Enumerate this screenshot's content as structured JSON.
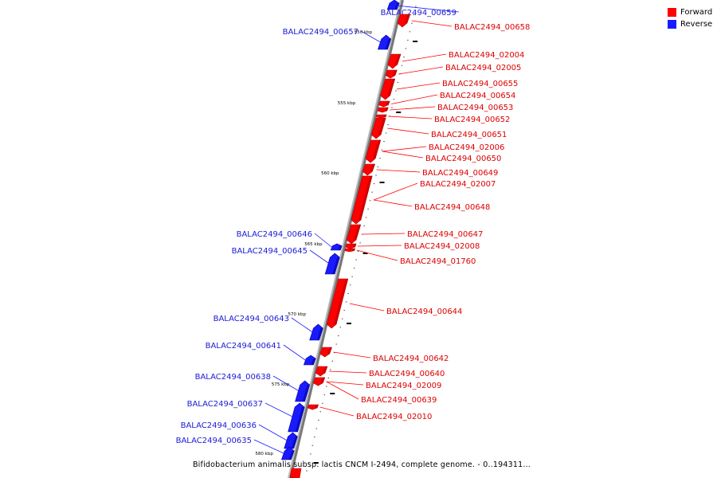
{
  "legend": {
    "forward": {
      "label": "Forward",
      "color": "#ff0000"
    },
    "reverse": {
      "label": "Reverse",
      "color": "#1a1aff"
    }
  },
  "caption": "Bifidobacterium animalis subsp. lactis CNCM I-2494, complete genome. - 0..194311...",
  "ticks": [
    {
      "kbp": 550,
      "label": "550 kbp"
    },
    {
      "kbp": 555,
      "label": "555 kbp"
    },
    {
      "kbp": 560,
      "label": "560 kbp"
    },
    {
      "kbp": 565,
      "label": "565 kbp"
    },
    {
      "kbp": 570,
      "label": "570 kbp"
    },
    {
      "kbp": 575,
      "label": "575 kbp"
    },
    {
      "kbp": 580,
      "label": "580 kbp"
    }
  ],
  "genes": [
    {
      "name": "BALAC2494_00659",
      "strand": "reverse"
    },
    {
      "name": "BALAC2494_00658",
      "strand": "forward"
    },
    {
      "name": "BALAC2494_00657",
      "strand": "reverse"
    },
    {
      "name": "BALAC2494_02004",
      "strand": "forward"
    },
    {
      "name": "BALAC2494_02005",
      "strand": "forward"
    },
    {
      "name": "BALAC2494_00655",
      "strand": "forward"
    },
    {
      "name": "BALAC2494_00654",
      "strand": "forward"
    },
    {
      "name": "BALAC2494_00653",
      "strand": "forward"
    },
    {
      "name": "BALAC2494_00652",
      "strand": "forward"
    },
    {
      "name": "BALAC2494_00651",
      "strand": "forward"
    },
    {
      "name": "BALAC2494_02006",
      "strand": "forward"
    },
    {
      "name": "BALAC2494_00650",
      "strand": "forward"
    },
    {
      "name": "BALAC2494_00649",
      "strand": "forward"
    },
    {
      "name": "BALAC2494_02007",
      "strand": "forward"
    },
    {
      "name": "BALAC2494_00648",
      "strand": "forward"
    },
    {
      "name": "BALAC2494_00647",
      "strand": "forward"
    },
    {
      "name": "BALAC2494_00646",
      "strand": "reverse"
    },
    {
      "name": "BALAC2494_02008",
      "strand": "forward"
    },
    {
      "name": "BALAC2494_00645",
      "strand": "reverse"
    },
    {
      "name": "BALAC2494_01760",
      "strand": "forward"
    },
    {
      "name": "BALAC2494_00644",
      "strand": "forward"
    },
    {
      "name": "BALAC2494_00643",
      "strand": "reverse"
    },
    {
      "name": "BALAC2494_00641",
      "strand": "reverse"
    },
    {
      "name": "BALAC2494_00642",
      "strand": "forward"
    },
    {
      "name": "BALAC2494_00640",
      "strand": "forward"
    },
    {
      "name": "BALAC2494_00638",
      "strand": "reverse"
    },
    {
      "name": "BALAC2494_02009",
      "strand": "forward"
    },
    {
      "name": "BALAC2494_00639",
      "strand": "forward"
    },
    {
      "name": "BALAC2494_00637",
      "strand": "reverse"
    },
    {
      "name": "BALAC2494_02010",
      "strand": "forward"
    },
    {
      "name": "BALAC2494_00636",
      "strand": "reverse"
    },
    {
      "name": "BALAC2494_00635",
      "strand": "reverse"
    }
  ]
}
